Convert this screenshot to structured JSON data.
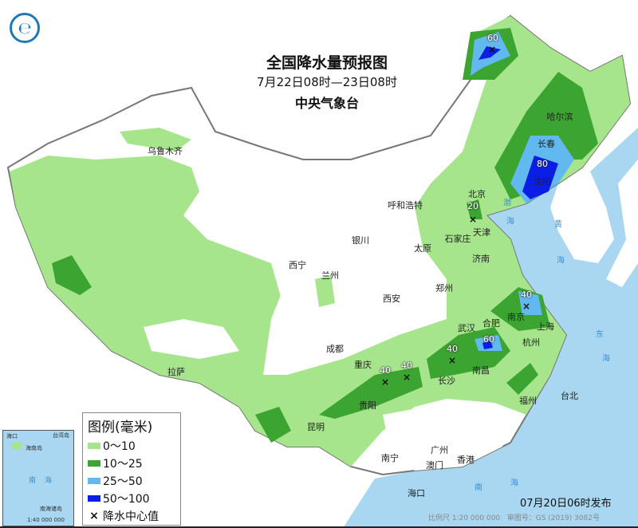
{
  "header": {
    "title": "全国降水量预报图",
    "period": "7月22日08时—23日08时",
    "issuer": "中央气象台",
    "logo_icon": "cma-logo-icon"
  },
  "legend": {
    "title": "图例(毫米)",
    "items": [
      {
        "label": "0～10",
        "color": "#a6e58c"
      },
      {
        "label": "10～25",
        "color": "#3ca532"
      },
      {
        "label": "25～50",
        "color": "#62b9f0"
      },
      {
        "label": "50～100",
        "color": "#0a1ee6"
      }
    ],
    "center_marker": "×",
    "center_label": "降水中心值"
  },
  "cities": [
    "乌鲁木齐",
    "哈尔滨",
    "长春",
    "沈阳",
    "呼和浩特",
    "北京",
    "天津",
    "太原",
    "石家庄",
    "济南",
    "银川",
    "西宁",
    "兰州",
    "郑州",
    "西安",
    "拉萨",
    "成都",
    "重庆",
    "武汉",
    "合肥",
    "南京",
    "上海",
    "杭州",
    "南昌",
    "长沙",
    "贵阳",
    "昆明",
    "福州",
    "台北",
    "南宁",
    "广州",
    "澳门",
    "香港",
    "海口"
  ],
  "center_values": [
    "60",
    "80",
    "20",
    "40",
    "60",
    "40",
    "40",
    "40"
  ],
  "seas": [
    "渤",
    "海",
    "黄",
    "海",
    "东",
    "海",
    "南",
    "海"
  ],
  "inset": {
    "labels": [
      "台湾岛",
      "海口",
      "海南岛",
      "南",
      "海",
      "南海诸岛",
      "1:40 000 000"
    ]
  },
  "footer": {
    "issued": "07月20日06时发布",
    "scale": "比例尺 1:20 000 000",
    "map_no": "审图号：GS (2019) 3082号"
  },
  "colors": {
    "sea": "#a9d7f2",
    "land": "#ffffff",
    "border": "#888888"
  }
}
